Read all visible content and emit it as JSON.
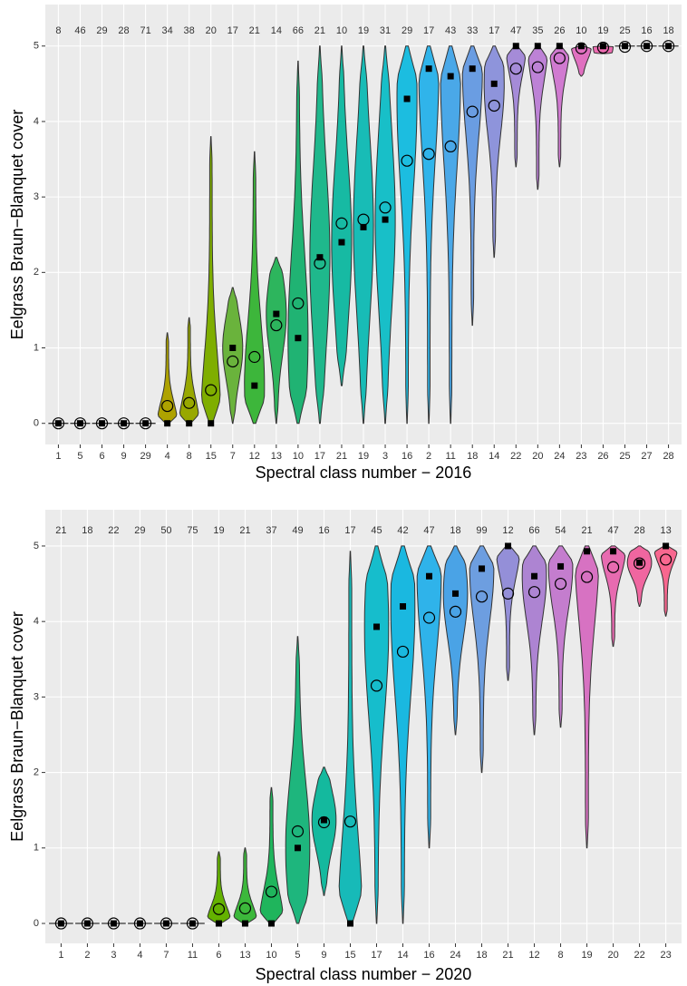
{
  "chart_data": [
    {
      "type": "violin",
      "xlabel": "Spectral class number − 2016",
      "ylabel": "Eelgrass Braun−Blanquet cover",
      "categories": [
        "1",
        "5",
        "6",
        "9",
        "29",
        "4",
        "8",
        "15",
        "7",
        "12",
        "13",
        "10",
        "17",
        "21",
        "19",
        "3",
        "16",
        "2",
        "11",
        "18",
        "14",
        "22",
        "20",
        "24",
        "23",
        "26",
        "25",
        "27",
        "28"
      ],
      "counts": [
        8,
        46,
        29,
        28,
        71,
        34,
        38,
        20,
        17,
        21,
        14,
        66,
        21,
        10,
        19,
        31,
        29,
        17,
        43,
        33,
        17,
        47,
        35,
        26,
        10,
        19,
        25,
        16,
        18
      ],
      "min": [
        0,
        0,
        0,
        0,
        0,
        0,
        0,
        0,
        0,
        0,
        0,
        0,
        0,
        0.5,
        0,
        0,
        0,
        0,
        0,
        1.3,
        2.2,
        3.4,
        3.1,
        3.4,
        4.6,
        4.9,
        5,
        5,
        5
      ],
      "max": [
        0,
        0,
        0,
        0,
        0,
        1.2,
        1.4,
        3.8,
        1.8,
        3.6,
        2.2,
        4.8,
        5,
        5,
        5,
        5,
        5,
        5,
        5,
        5,
        5,
        5,
        5,
        5,
        5,
        5,
        5,
        5,
        5
      ],
      "median": [
        0,
        0,
        0,
        0,
        0,
        0,
        0,
        0,
        1,
        0.5,
        1.45,
        1.13,
        2.2,
        2.4,
        2.6,
        2.7,
        4.3,
        4.7,
        4.6,
        4.7,
        4.5,
        5,
        5,
        5,
        5,
        5,
        5,
        5,
        5
      ],
      "mean": [
        0,
        0,
        0,
        0,
        0,
        0.23,
        0.27,
        0.44,
        0.82,
        0.88,
        1.3,
        1.59,
        2.12,
        2.65,
        2.7,
        2.86,
        3.48,
        3.57,
        3.67,
        4.13,
        4.21,
        4.7,
        4.72,
        4.84,
        4.97,
        4.98,
        4.99,
        5,
        5
      ],
      "colors": [
        "#f8766d",
        "#ef7f45",
        "#e38900",
        "#d49200",
        "#c29a00",
        "#aea200",
        "#98a800",
        "#7fae00",
        "#6ab33c",
        "#3db63b",
        "#2db55d",
        "#20b373",
        "#1fb88c",
        "#17baa3",
        "#18bcb6",
        "#18bfc8",
        "#1cbde0",
        "#30b4ea",
        "#4aa8e8",
        "#6a9de2",
        "#8e94db",
        "#a58bd8",
        "#bd82d6",
        "#d07ad0",
        "#e070c0",
        "#ec6bb0",
        "#f0699b",
        "#f26a89",
        "#f27374"
      ],
      "ylim": [
        -0.28,
        5.55
      ],
      "yticks": [
        0,
        1,
        2,
        3,
        4,
        5
      ],
      "grid": true
    },
    {
      "type": "violin",
      "xlabel": "Spectral class number − 2020",
      "ylabel": "Eelgrass Braun−Blanquet cover",
      "categories": [
        "1",
        "2",
        "3",
        "4",
        "7",
        "11",
        "6",
        "13",
        "10",
        "5",
        "9",
        "15",
        "17",
        "14",
        "16",
        "24",
        "18",
        "21",
        "12",
        "8",
        "19",
        "20",
        "22",
        "23"
      ],
      "counts": [
        21,
        18,
        22,
        29,
        50,
        75,
        19,
        21,
        37,
        49,
        16,
        17,
        45,
        42,
        47,
        18,
        99,
        12,
        66,
        54,
        21,
        47,
        28,
        13
      ],
      "min": [
        0,
        0,
        0,
        0,
        0,
        0,
        0,
        0,
        0,
        0,
        0.37,
        0,
        0,
        0,
        1,
        2.5,
        2,
        3.22,
        2.5,
        2.6,
        1,
        3.67,
        4.2,
        4.07
      ],
      "max": [
        0,
        0,
        0,
        0,
        0,
        0,
        0.95,
        1,
        1.8,
        3.8,
        2.07,
        4.93,
        5,
        5,
        5,
        5,
        5,
        5,
        5,
        5,
        5,
        5,
        5,
        5
      ],
      "median": [
        0,
        0,
        0,
        0,
        0,
        0,
        0,
        0,
        0,
        1,
        1.37,
        0,
        3.93,
        4.2,
        4.6,
        4.37,
        4.7,
        5,
        4.6,
        4.73,
        4.93,
        4.93,
        4.78,
        5
      ],
      "mean": [
        0,
        0,
        0,
        0,
        0,
        0,
        0.19,
        0.2,
        0.42,
        1.22,
        1.34,
        1.35,
        3.15,
        3.6,
        4.05,
        4.13,
        4.33,
        4.37,
        4.39,
        4.5,
        4.59,
        4.72,
        4.77,
        4.82
      ],
      "colors": [
        "#f8766d",
        "#ec8239",
        "#db8e00",
        "#c79800",
        "#aea200",
        "#8fa900",
        "#64b200",
        "#3cb83b",
        "#1fb55c",
        "#1eb67d",
        "#14b99e",
        "#17bab8",
        "#16bdcc",
        "#1ab8e0",
        "#2fb3ea",
        "#4aa3e6",
        "#6d9ee0",
        "#948fd8",
        "#ad84d2",
        "#c47dce",
        "#d772c2",
        "#e76bb0",
        "#f066a0",
        "#f8678f"
      ],
      "ylim": [
        -0.264,
        5.48
      ],
      "yticks": [
        0,
        1,
        2,
        3,
        4,
        5
      ],
      "grid": true
    }
  ]
}
